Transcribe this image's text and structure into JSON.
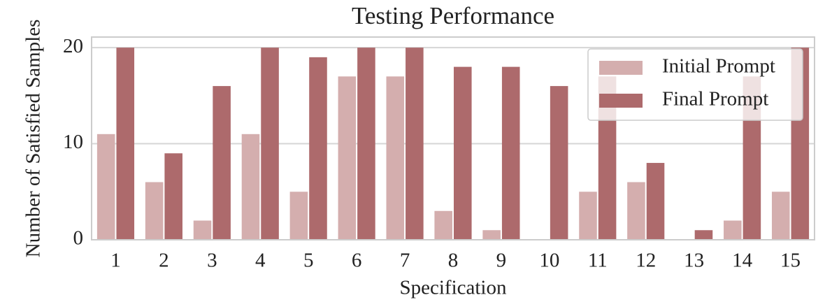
{
  "chart_data": {
    "type": "bar",
    "title": "Testing Performance",
    "x_label": "Specification",
    "y_label": "Number of Satisfied Samples",
    "categories": [
      "1",
      "2",
      "3",
      "4",
      "5",
      "6",
      "7",
      "8",
      "9",
      "10",
      "11",
      "12",
      "13",
      "14",
      "15"
    ],
    "series": [
      {
        "name": "Initial Prompt",
        "color": "#d4aeae",
        "values": [
          11,
          6,
          2,
          11,
          5,
          17,
          17,
          3,
          1,
          0,
          5,
          6,
          0,
          2,
          5
        ]
      },
      {
        "name": "Final Prompt",
        "color": "#ad6a6c",
        "values": [
          20,
          9,
          16,
          20,
          19,
          20,
          20,
          18,
          18,
          16,
          17,
          8,
          1,
          17,
          20
        ]
      }
    ],
    "ylim": [
      0,
      21.1
    ],
    "yticks": [
      0,
      10,
      20
    ],
    "grid": true,
    "legend": "upper right"
  }
}
